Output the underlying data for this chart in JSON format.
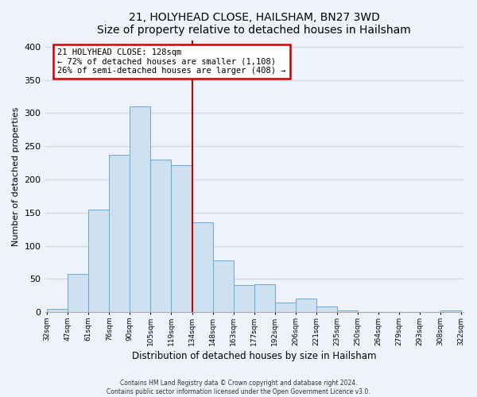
{
  "title": "21, HOLYHEAD CLOSE, HAILSHAM, BN27 3WD",
  "subtitle": "Size of property relative to detached houses in Hailsham",
  "xlabel": "Distribution of detached houses by size in Hailsham",
  "ylabel": "Number of detached properties",
  "bar_color": "#cce0f0",
  "bar_edge_color": "#6aaad4",
  "categories": [
    "32sqm",
    "47sqm",
    "61sqm",
    "76sqm",
    "90sqm",
    "105sqm",
    "119sqm",
    "134sqm",
    "148sqm",
    "163sqm",
    "177sqm",
    "192sqm",
    "206sqm",
    "221sqm",
    "235sqm",
    "250sqm",
    "264sqm",
    "279sqm",
    "293sqm",
    "308sqm",
    "322sqm"
  ],
  "values": [
    5,
    57,
    155,
    237,
    310,
    230,
    222,
    135,
    78,
    41,
    42,
    15,
    20,
    8,
    3,
    0,
    0,
    0,
    0,
    3
  ],
  "vline_label_index": 7,
  "vline_color": "#cc0000",
  "annotation_title": "21 HOLYHEAD CLOSE: 128sqm",
  "annotation_line1": "← 72% of detached houses are smaller (1,108)",
  "annotation_line2": "26% of semi-detached houses are larger (408) →",
  "annotation_box_color": "#ffffff",
  "annotation_box_edge": "#cc0000",
  "ylim": [
    0,
    410
  ],
  "yticks": [
    0,
    50,
    100,
    150,
    200,
    250,
    300,
    350,
    400
  ],
  "footnote1": "Contains HM Land Registry data © Crown copyright and database right 2024.",
  "footnote2": "Contains public sector information licensed under the Open Government Licence v3.0.",
  "background_color": "#eef2fa",
  "grid_color": "#d0d8e8",
  "fig_width": 6.0,
  "fig_height": 5.0,
  "dpi": 100
}
